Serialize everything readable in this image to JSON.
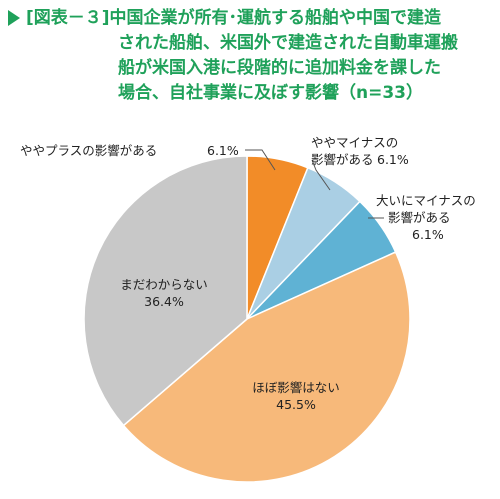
{
  "title_lines": [
    "[図表－３]中国企業が所有･運航する船舶や中国で建造",
    "された船舶、米国外で建造された自動車運搬",
    "船が米国入港に段階的に追加料金を課した",
    "場合、自社事業に及ぼす影響（n=33）"
  ],
  "colors": {
    "title": "#1fa15a",
    "slices": [
      "#f28c28",
      "#aacfe4",
      "#5fb2d4",
      "#f7b97a",
      "#c8c8c8"
    ]
  },
  "labels": [
    "ややプラスの影響がある",
    "6.1%",
    "ややマイナスの",
    "影響がある",
    "6.1%",
    "大いにマイナスの",
    "影響がある",
    "6.1%",
    "ほぼ影響はない",
    "45.5%",
    "まだわからない",
    "36.4%"
  ],
  "chart_data": {
    "type": "pie",
    "n": 33,
    "slices": [
      {
        "name": "ややプラスの影響がある",
        "value": 6.1
      },
      {
        "name": "ややマイナスの影響がある",
        "value": 6.1
      },
      {
        "name": "大いにマイナスの影響がある",
        "value": 6.1
      },
      {
        "name": "ほぼ影響はない",
        "value": 45.5
      },
      {
        "name": "まだわからない",
        "value": 36.4
      }
    ],
    "start": "12 o'clock",
    "direction": "clockwise"
  }
}
